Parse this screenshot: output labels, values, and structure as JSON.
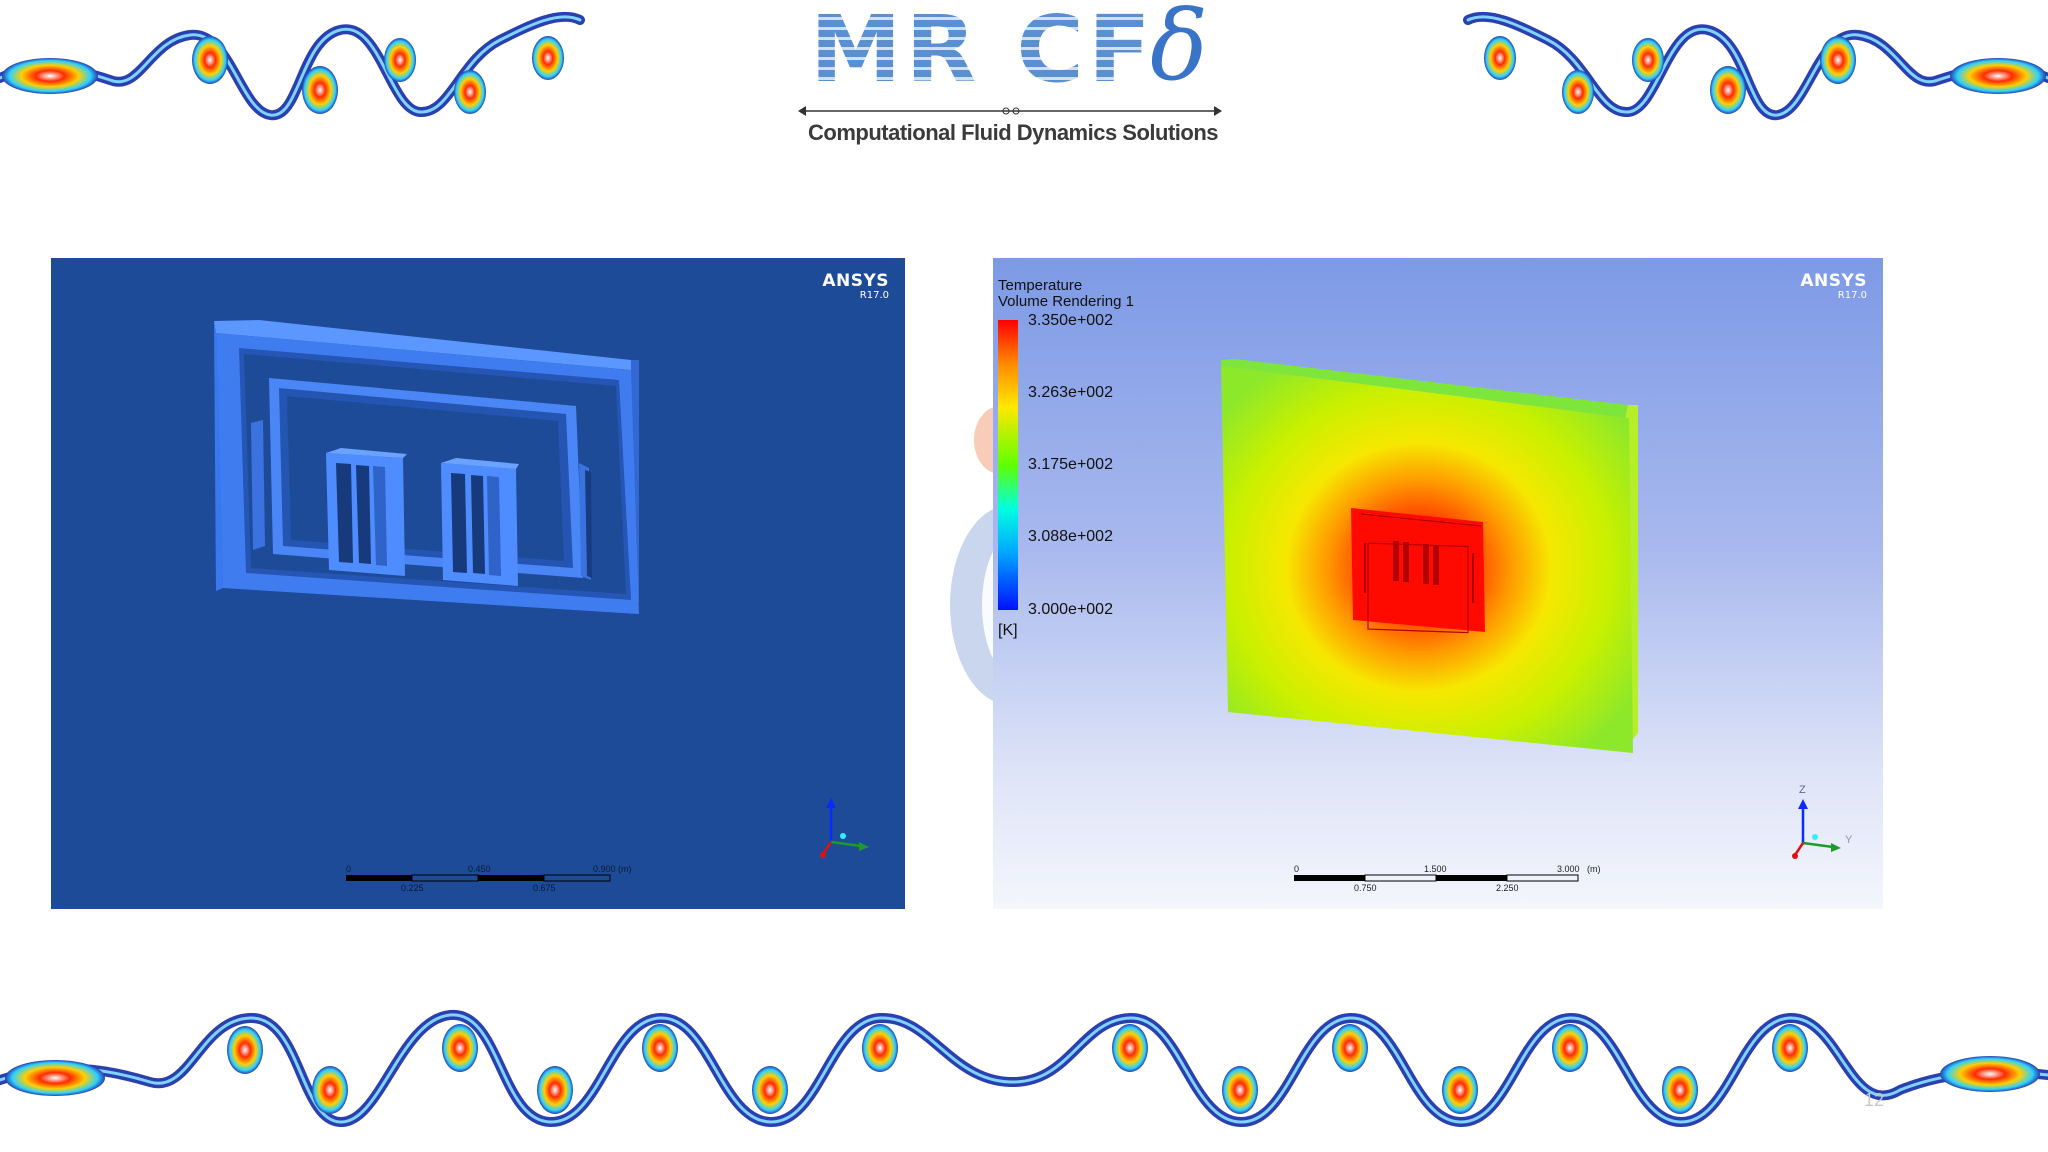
{
  "logo": {
    "text": "MR CF",
    "symbol": "δ",
    "tagline": "Computational Fluid Dynamics Solutions"
  },
  "left_panel": {
    "brand": "ANSYS",
    "version": "R17.0",
    "scale": {
      "top": [
        "0",
        "0.450",
        "0.900",
        "(m)"
      ],
      "bottom": [
        "0.225",
        "0.675"
      ]
    }
  },
  "right_panel": {
    "brand": "ANSYS",
    "version": "R17.0",
    "legend": {
      "title_line1": "Temperature",
      "title_line2": "Volume Rendering 1",
      "values": [
        "3.350e+002",
        "3.263e+002",
        "3.175e+002",
        "3.088e+002",
        "3.000e+002"
      ],
      "unit": "[K]"
    },
    "scale": {
      "top": [
        "0",
        "1.500",
        "3.000",
        "(m)"
      ],
      "bottom": [
        "0.750",
        "2.250"
      ]
    },
    "axes": {
      "z": "Z",
      "y": "Y"
    }
  },
  "page_number": "12",
  "colors": {
    "left_background": "#1e4b98",
    "model_blue": "#3f7cf0",
    "temperature_max": "#ff0000",
    "temperature_min": "#0010ff"
  }
}
